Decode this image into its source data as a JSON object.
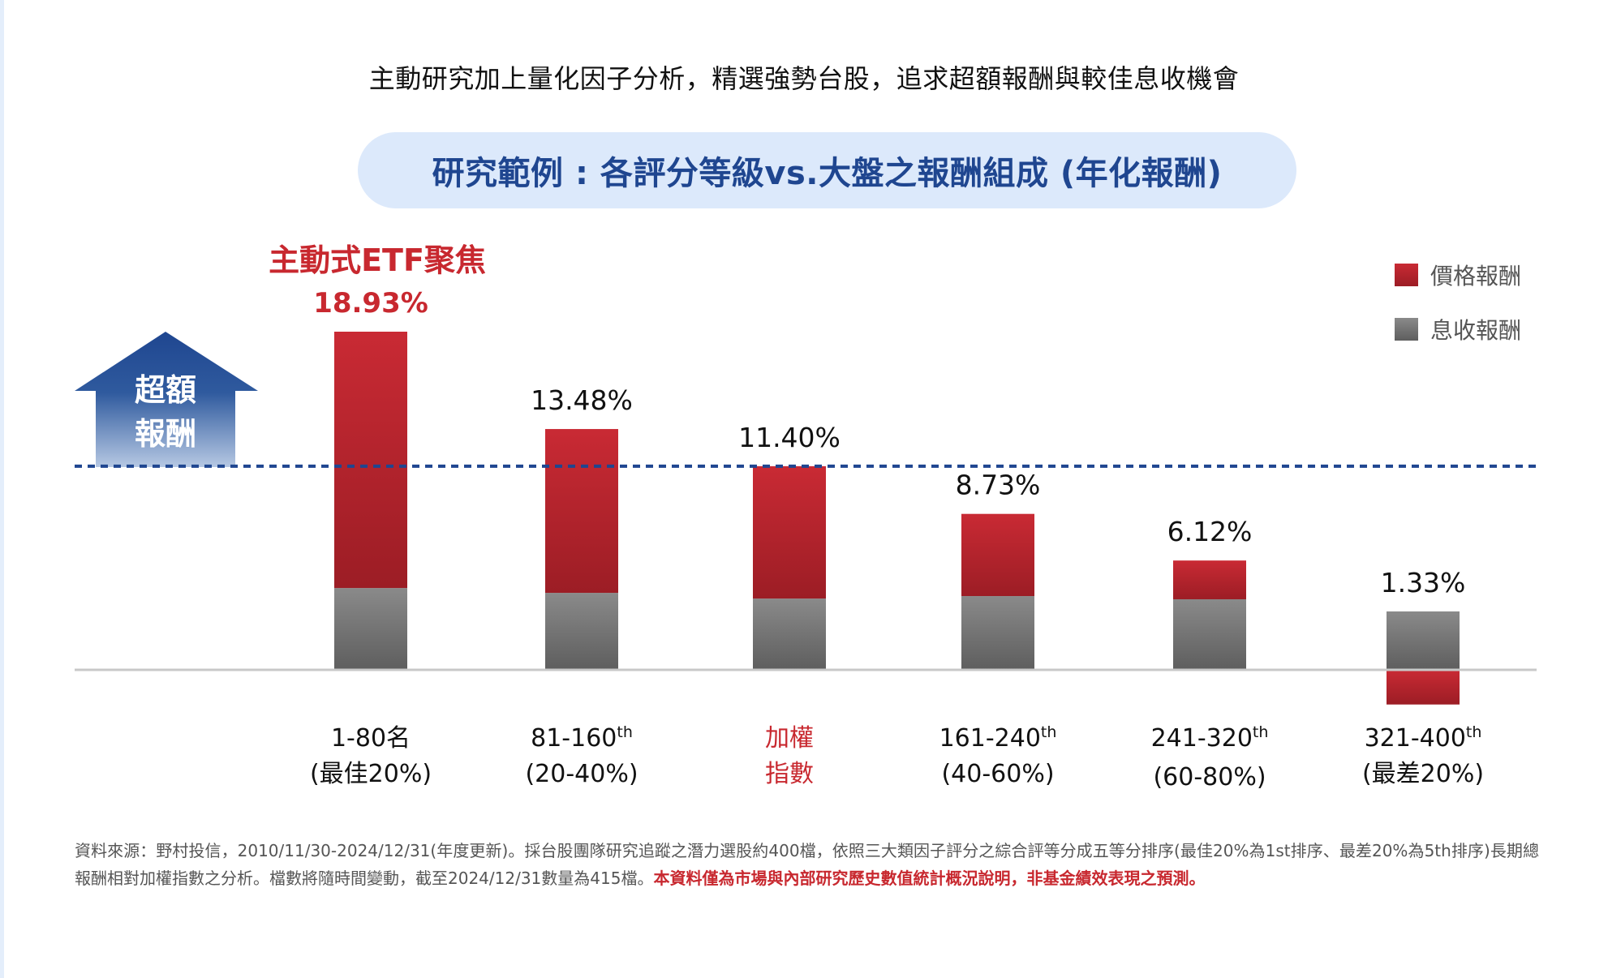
{
  "heading": "主動研究加上量化因子分析，精選強勢台股，追求超額報酬與較佳息收機會",
  "subtitle": "研究範例 : 各評分等級vs.大盤之報酬組成 (年化報酬)",
  "focus_title": "主動式ETF聚焦",
  "excess_arrow": {
    "line1": "超額",
    "line2": "報酬",
    "icon": "up-arrow-icon"
  },
  "colors": {
    "price": "#c0272f",
    "income": "#777777",
    "accent_blue": "#1f4690",
    "pill_bg": "#dce9fb",
    "highlight_red": "#c8282f"
  },
  "legend": [
    {
      "label": "價格報酬",
      "series": "price"
    },
    {
      "label": "息收報酬",
      "series": "income"
    }
  ],
  "chart_data": {
    "type": "bar",
    "stacked": true,
    "title": "研究範例 : 各評分等級vs.大盤之報酬組成 (年化報酬)",
    "categories": [
      {
        "line1": "1-80名",
        "sup": "",
        "line2": "(最佳20%)",
        "highlight": false
      },
      {
        "line1": "81-160",
        "sup": "th",
        "line2": "(20-40%)",
        "highlight": false
      },
      {
        "line1": "加權",
        "sup": "",
        "line2": "指數",
        "highlight": true
      },
      {
        "line1": "161-240",
        "sup": "th",
        "line2": "(40-60%)",
        "highlight": false
      },
      {
        "line1": "241-320",
        "sup": "th",
        "line2": "(60-80%)",
        "highlight": false
      },
      {
        "line1": "321-400",
        "sup": "th",
        "line2": "(最差20%)",
        "highlight": false
      }
    ],
    "totals": [
      18.93,
      13.48,
      11.4,
      8.73,
      6.12,
      1.33
    ],
    "total_labels": [
      "18.93%",
      "13.48%",
      "11.40%",
      "8.73%",
      "6.12%",
      "1.33%"
    ],
    "series": [
      {
        "name": "價格報酬",
        "key": "price",
        "values": [
          14.35,
          9.17,
          7.41,
          4.6,
          2.17,
          -1.94
        ]
      },
      {
        "name": "息收報酬",
        "key": "income",
        "values": [
          4.58,
          4.31,
          3.99,
          4.13,
          3.95,
          3.27
        ]
      }
    ],
    "reference_line": {
      "value": 11.4,
      "style": "dashed",
      "meaning": "加權指數"
    },
    "ylim": [
      -2.5,
      20
    ],
    "xlabel": "",
    "ylabel": "",
    "grid": false,
    "legend_position": "top-right"
  },
  "footnote": {
    "normal": "資料來源：野村投信，2010/11/30-2024/12/31(年度更新)。採台股團隊研究追蹤之潛力選股約400檔，依照三大類因子評分之綜合評等分成五等分排序(最佳20%為1st排序、最差20%為5th排序)長期總報酬相對加權指數之分析。檔數將隨時間變動，截至2024/12/31數量為415檔。",
    "emphasis": "本資料僅為市場與內部研究歷史數值統計概況說明，非基金績效表現之預測。"
  }
}
